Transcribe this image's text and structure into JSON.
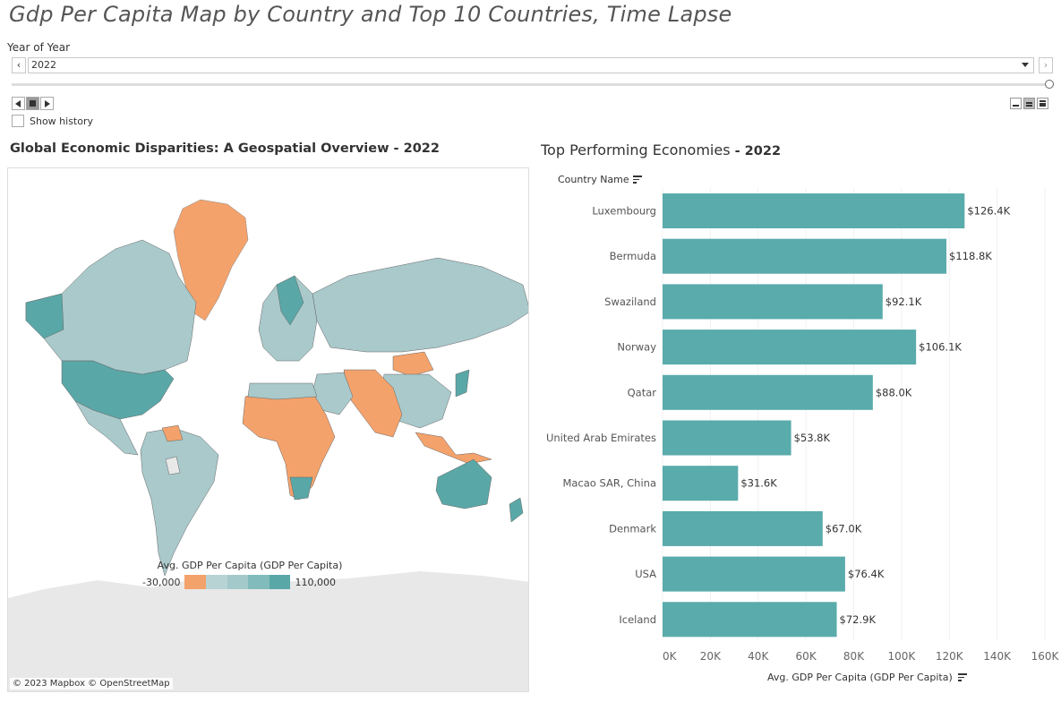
{
  "title": "Gdp Per Capita Map by Country and Top 10 Countries, Time Lapse",
  "filter": {
    "label": "Year of Year",
    "value": "2022",
    "show_history": "Show history"
  },
  "map": {
    "title": "Global Economic Disparities: A Geospatial Overview - 2022",
    "credit": "© 2023 Mapbox © OpenStreetMap",
    "legend_title": "Avg. GDP Per Capita (GDP Per Capita)",
    "legend_min": "-30,000",
    "legend_max": "110,000",
    "colors": {
      "low": "#f4a26b",
      "high": "#5aa7a7",
      "mid": "#a9c9cb",
      "ocean": "#ffffff",
      "land_none": "#e8e8e8"
    }
  },
  "bar_chart": {
    "title_main": "Top Performing Economies",
    "title_year": " - 2022",
    "category_header": "Country Name",
    "axis_title": "Avg. GDP Per Capita (GDP Per Capita)"
  },
  "chart_data": {
    "type": "bar",
    "orientation": "horizontal",
    "categories": [
      "Luxembourg",
      "Bermuda",
      "Swaziland",
      "Norway",
      "Qatar",
      "United Arab Emirates",
      "Macao SAR, China",
      "Denmark",
      "USA",
      "Iceland"
    ],
    "values": [
      126.4,
      118.8,
      92.1,
      106.1,
      88.0,
      53.8,
      31.6,
      67.0,
      76.4,
      72.9
    ],
    "labels": [
      "$126.4K",
      "$118.8K",
      "$92.1K",
      "$106.1K",
      "$88.0K",
      "$53.8K",
      "$31.6K",
      "$67.0K",
      "$76.4K",
      "$72.9K"
    ],
    "ticks": [
      "0K",
      "20K",
      "40K",
      "60K",
      "80K",
      "100K",
      "120K",
      "140K",
      "160K"
    ],
    "xlim": [
      0,
      160
    ],
    "color": "#5aabab",
    "title": "Top Performing Economies - 2022",
    "xlabel": "Avg. GDP Per Capita (GDP Per Capita)",
    "ylabel": "Country Name"
  }
}
